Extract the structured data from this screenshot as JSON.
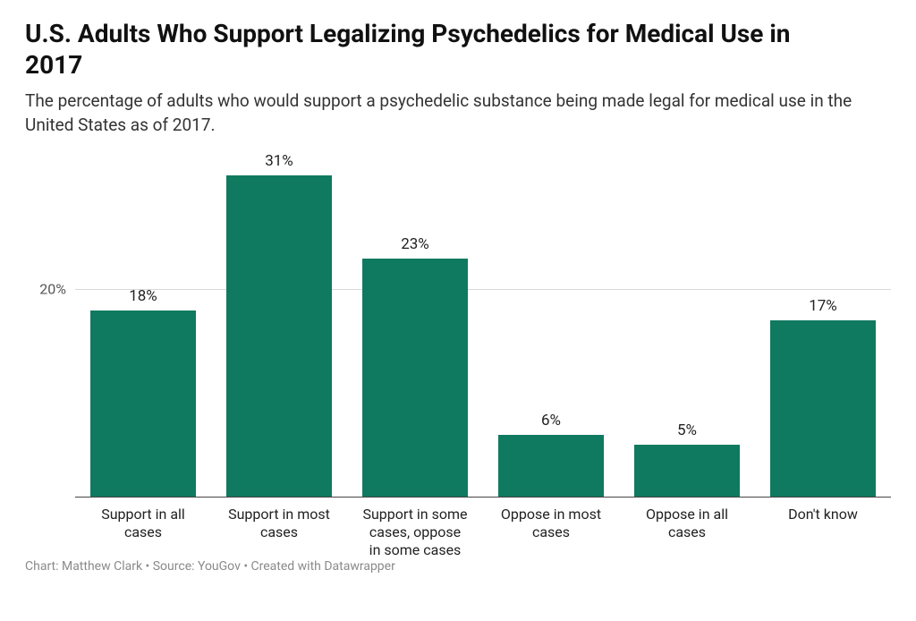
{
  "title": "U.S. Adults Who Support Legalizing Psychedelics for Medical Use in 2017",
  "subtitle": "The percentage of adults who would support a psychedelic substance being made legal for medical use in the United States as of 2017.",
  "footer": "Chart: Matthew Clark • Source: YouGov • Created with Datawrapper",
  "chart": {
    "type": "bar",
    "categories": [
      "Support in all cases",
      "Support in most cases",
      "Support in some cases, oppose in some cases",
      "Oppose in most cases",
      "Oppose in all cases",
      "Don't know"
    ],
    "values": [
      18,
      31,
      23,
      6,
      5,
      17
    ],
    "value_labels": [
      "18%",
      "31%",
      "23%",
      "6%",
      "5%",
      "17%"
    ],
    "bar_color": "#0f7a5f",
    "y_ticks": [
      20
    ],
    "y_tick_labels": [
      "20%"
    ],
    "y_max": 34,
    "bar_width": 0.78,
    "grid_color": "#d9d9d9",
    "baseline_color": "#444444",
    "background_color": "#ffffff",
    "title_fontsize": 28,
    "title_fontweight": 700,
    "subtitle_fontsize": 19,
    "label_fontsize": 16,
    "value_label_fontsize": 17,
    "footer_fontsize": 14,
    "footer_color": "#8a8a8a",
    "text_color": "#222222"
  }
}
